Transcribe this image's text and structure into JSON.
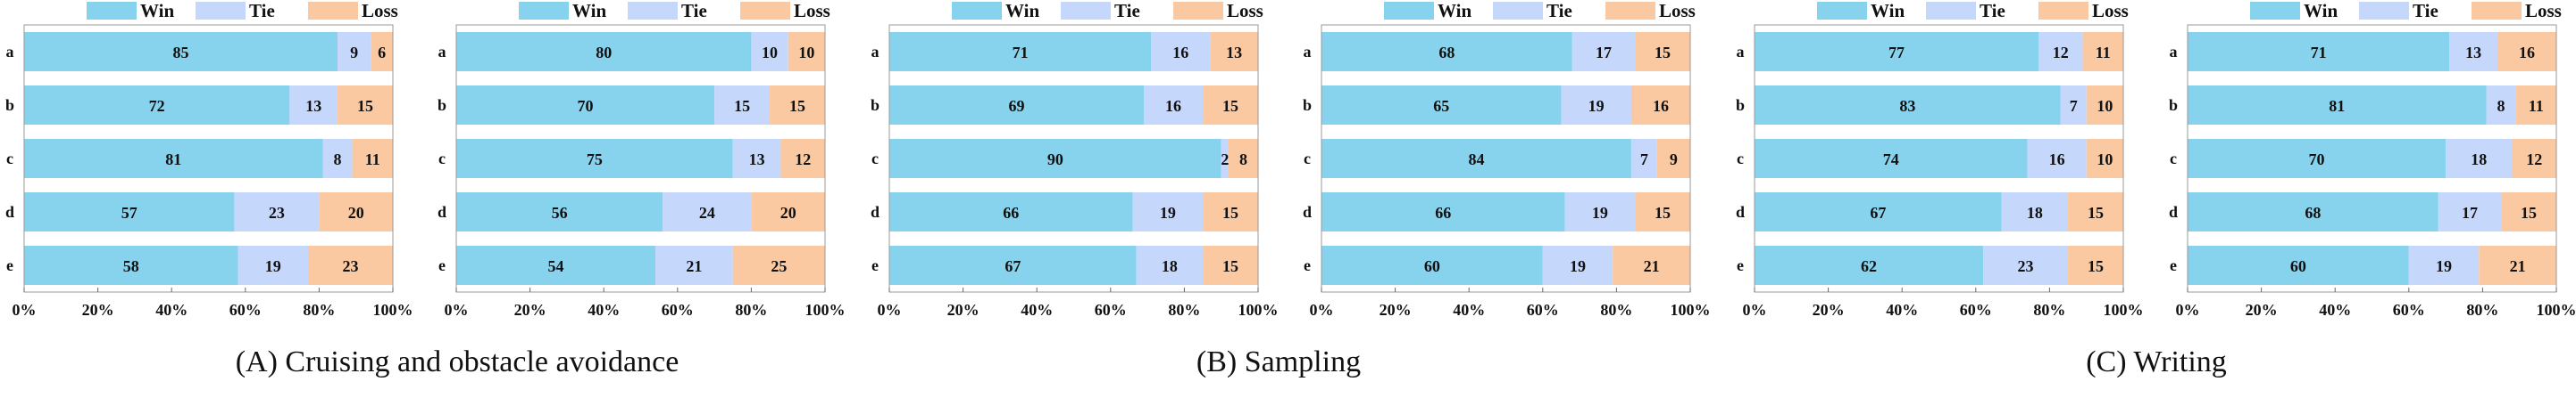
{
  "legend": [
    {
      "label": "Win",
      "color": "#87d3ee"
    },
    {
      "label": "Tie",
      "color": "#c6d7fc"
    },
    {
      "label": "Loss",
      "color": "#fac9a1"
    }
  ],
  "captions": [
    "(A) Cruising and obstacle avoidance",
    "(B) Sampling",
    "(C) Writing"
  ],
  "chart_data": [
    {
      "type": "bar",
      "orientation": "horizontal",
      "stacked": true,
      "categories": [
        "a",
        "b",
        "c",
        "d",
        "e"
      ],
      "series": [
        {
          "name": "Win",
          "values": [
            85,
            72,
            81,
            57,
            58
          ]
        },
        {
          "name": "Tie",
          "values": [
            9,
            13,
            8,
            23,
            19
          ]
        },
        {
          "name": "Loss",
          "values": [
            6,
            15,
            11,
            20,
            23
          ]
        }
      ],
      "xlim": [
        0,
        100
      ],
      "xticks": [
        "0%",
        "20%",
        "40%",
        "60%",
        "80%",
        "100%"
      ],
      "legend_position": "top"
    },
    {
      "type": "bar",
      "orientation": "horizontal",
      "stacked": true,
      "categories": [
        "a",
        "b",
        "c",
        "d",
        "e"
      ],
      "series": [
        {
          "name": "Win",
          "values": [
            80,
            70,
            75,
            56,
            54
          ]
        },
        {
          "name": "Tie",
          "values": [
            10,
            15,
            13,
            24,
            21
          ]
        },
        {
          "name": "Loss",
          "values": [
            10,
            15,
            12,
            20,
            25
          ]
        }
      ],
      "xlim": [
        0,
        100
      ],
      "xticks": [
        "0%",
        "20%",
        "40%",
        "60%",
        "80%",
        "100%"
      ],
      "legend_position": "top"
    },
    {
      "type": "bar",
      "orientation": "horizontal",
      "stacked": true,
      "categories": [
        "a",
        "b",
        "c",
        "d",
        "e"
      ],
      "series": [
        {
          "name": "Win",
          "values": [
            71,
            69,
            90,
            66,
            67
          ]
        },
        {
          "name": "Tie",
          "values": [
            16,
            16,
            2,
            19,
            18
          ]
        },
        {
          "name": "Loss",
          "values": [
            13,
            15,
            8,
            15,
            15
          ]
        }
      ],
      "xlim": [
        0,
        100
      ],
      "xticks": [
        "0%",
        "20%",
        "40%",
        "60%",
        "80%",
        "100%"
      ],
      "legend_position": "top"
    },
    {
      "type": "bar",
      "orientation": "horizontal",
      "stacked": true,
      "categories": [
        "a",
        "b",
        "c",
        "d",
        "e"
      ],
      "series": [
        {
          "name": "Win",
          "values": [
            68,
            65,
            84,
            66,
            60
          ]
        },
        {
          "name": "Tie",
          "values": [
            17,
            19,
            7,
            19,
            19
          ]
        },
        {
          "name": "Loss",
          "values": [
            15,
            16,
            9,
            15,
            21
          ]
        }
      ],
      "xlim": [
        0,
        100
      ],
      "xticks": [
        "0%",
        "20%",
        "40%",
        "60%",
        "80%",
        "100%"
      ],
      "legend_position": "top"
    },
    {
      "type": "bar",
      "orientation": "horizontal",
      "stacked": true,
      "categories": [
        "a",
        "b",
        "c",
        "d",
        "e"
      ],
      "series": [
        {
          "name": "Win",
          "values": [
            77,
            83,
            74,
            67,
            62
          ]
        },
        {
          "name": "Tie",
          "values": [
            12,
            7,
            16,
            18,
            23
          ]
        },
        {
          "name": "Loss",
          "values": [
            11,
            10,
            10,
            15,
            15
          ]
        }
      ],
      "xlim": [
        0,
        100
      ],
      "xticks": [
        "0%",
        "20%",
        "40%",
        "60%",
        "80%",
        "100%"
      ],
      "legend_position": "top"
    },
    {
      "type": "bar",
      "orientation": "horizontal",
      "stacked": true,
      "categories": [
        "a",
        "b",
        "c",
        "d",
        "e"
      ],
      "series": [
        {
          "name": "Win",
          "values": [
            71,
            81,
            70,
            68,
            60
          ]
        },
        {
          "name": "Tie",
          "values": [
            13,
            8,
            18,
            17,
            19
          ]
        },
        {
          "name": "Loss",
          "values": [
            16,
            11,
            12,
            15,
            21
          ]
        }
      ],
      "xlim": [
        0,
        100
      ],
      "xticks": [
        "0%",
        "20%",
        "40%",
        "60%",
        "80%",
        "100%"
      ],
      "legend_position": "top"
    }
  ]
}
